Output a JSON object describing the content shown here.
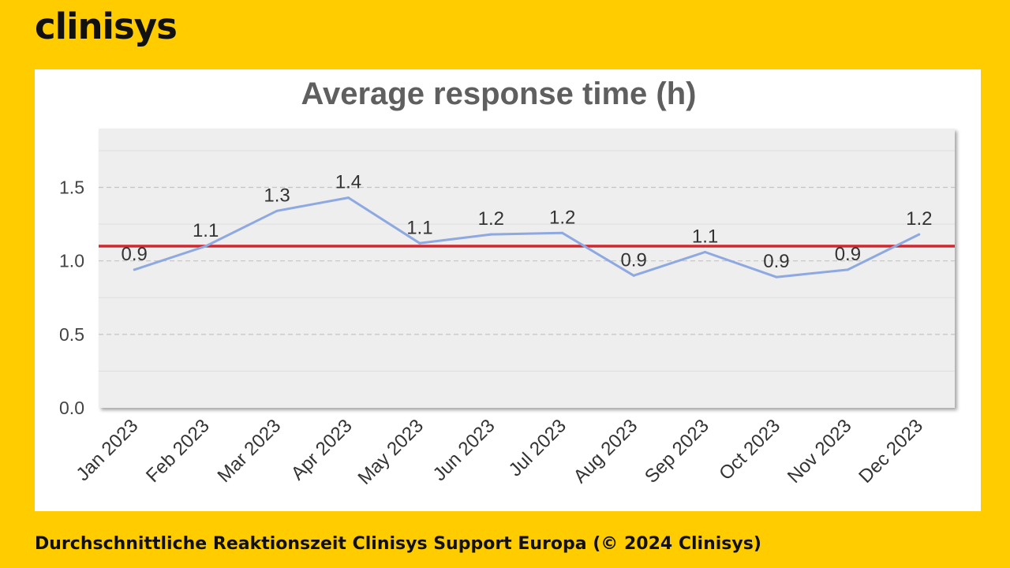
{
  "brand": {
    "logo_text": "clinisys",
    "background_color": "#FFCC00",
    "text_color": "#111111"
  },
  "caption": "Durchschnittliche Reaktionszeit Clinisys Support Europa (© 2024 Clinisys)",
  "chart_data": {
    "type": "line",
    "title": "Average response time (h)",
    "xlabel": "",
    "ylabel": "",
    "categories": [
      "Jan 2023",
      "Feb 2023",
      "Mar 2023",
      "Apr 2023",
      "May 2023",
      "Jun 2023",
      "Jul 2023",
      "Aug 2023",
      "Sep 2023",
      "Oct 2023",
      "Nov 2023",
      "Dec 2023"
    ],
    "series": [
      {
        "values": [
          0.94,
          1.1,
          1.34,
          1.43,
          1.12,
          1.18,
          1.19,
          0.9,
          1.06,
          0.89,
          0.94,
          1.18
        ],
        "data_labels": [
          "0.9",
          "1.1",
          "1.3",
          "1.4",
          "1.1",
          "1.2",
          "1.2",
          "0.9",
          "1.1",
          "0.9",
          "0.9",
          "1.2"
        ],
        "color": "#8EA9E1"
      }
    ],
    "reference_line": {
      "value": 1.1,
      "color": "#D0282E"
    },
    "yticks": [
      0.0,
      0.5,
      1.0,
      1.5
    ],
    "ytick_labels": [
      "0.0",
      "0.5",
      "1.0",
      "1.5"
    ],
    "ylim": [
      0,
      1.9
    ],
    "grid": true,
    "legend": "none",
    "plot_background": "#EEEEEE"
  }
}
